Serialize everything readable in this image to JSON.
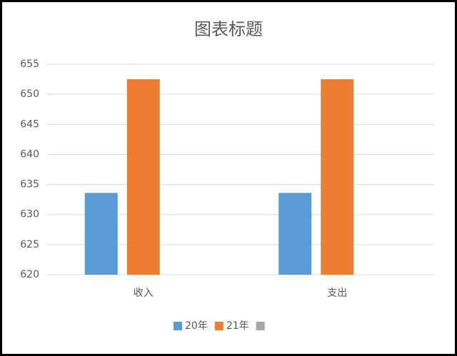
{
  "chart_data": {
    "type": "bar",
    "title": "图表标题",
    "categories": [
      "收入",
      "支出"
    ],
    "series": [
      {
        "name": "20年",
        "color": "#5b9bd5",
        "values": [
          633.6,
          633.6
        ]
      },
      {
        "name": "21年",
        "color": "#ed7d31",
        "values": [
          652.5,
          652.5
        ]
      },
      {
        "color": "#a5a5a5",
        "values": [
          null,
          null
        ]
      }
    ],
    "ylim": [
      620,
      655
    ],
    "yticks": [
      620,
      625,
      630,
      635,
      640,
      645,
      650,
      655
    ],
    "grid": true,
    "legend": "bottom"
  }
}
